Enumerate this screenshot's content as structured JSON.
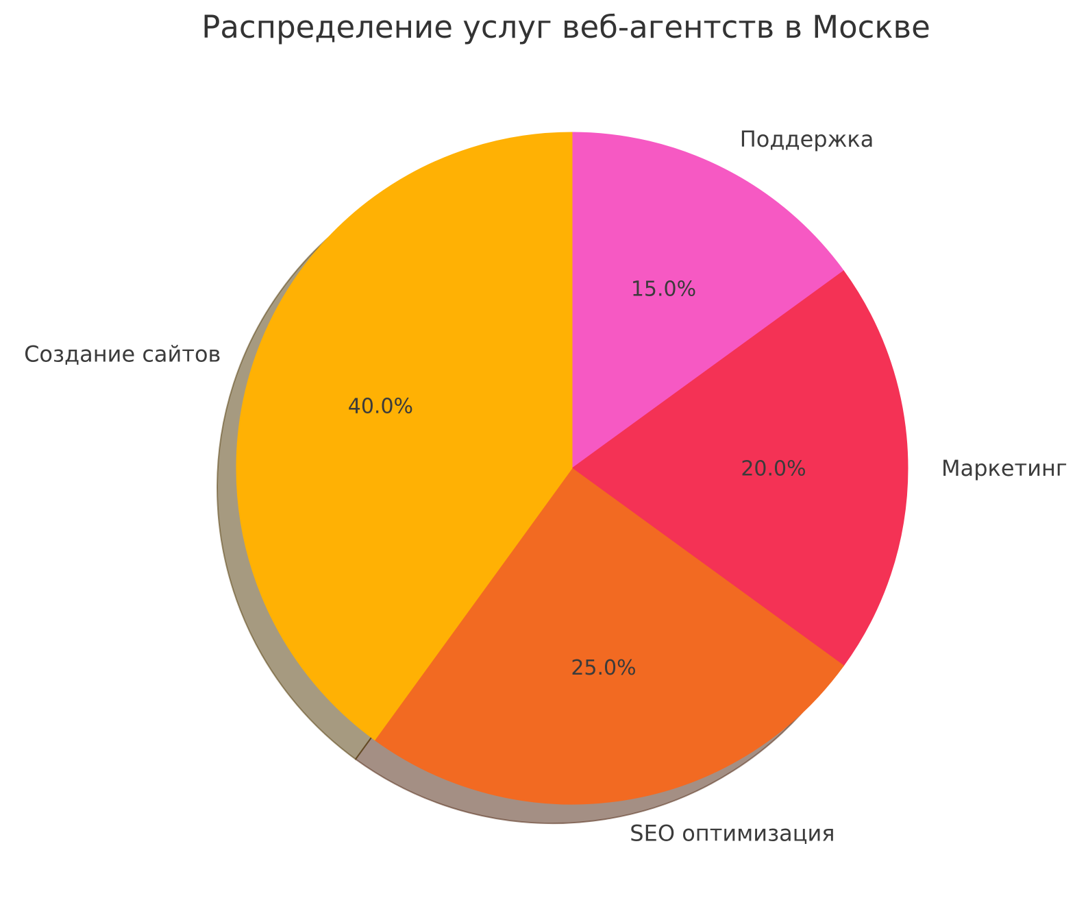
{
  "chart_data": {
    "type": "pie",
    "title": "Распределение услуг веб-агентств в Москве",
    "slices": [
      {
        "label": "Поддержка",
        "value": 15.0,
        "pct_label": "15.0%",
        "color": "#F659C3"
      },
      {
        "label": "Маркетинг",
        "value": 20.0,
        "pct_label": "20.0%",
        "color": "#F43255"
      },
      {
        "label": "SEO оптимизация",
        "value": 25.0,
        "pct_label": "25.0%",
        "color": "#F26A22"
      },
      {
        "label": "Создание сайтов",
        "value": 40.0,
        "pct_label": "40.0%",
        "color": "#FFB104"
      }
    ],
    "start_angle_deg": 90,
    "direction": "clockwise",
    "label_distance": 1.1,
    "pct_distance": 0.6,
    "shadow": true,
    "legend": "none",
    "background": "#FFFFFF",
    "title_color": "#333333",
    "text_color": "#3B3B3B"
  }
}
